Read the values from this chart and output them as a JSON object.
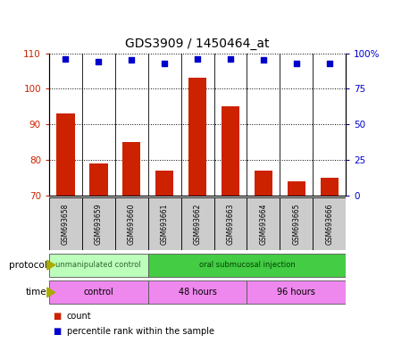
{
  "title": "GDS3909 / 1450464_at",
  "samples": [
    "GSM693658",
    "GSM693659",
    "GSM693660",
    "GSM693661",
    "GSM693662",
    "GSM693663",
    "GSM693664",
    "GSM693665",
    "GSM693666"
  ],
  "count_values": [
    93,
    79,
    85,
    77,
    103,
    95,
    77,
    74,
    75
  ],
  "percentile_values": [
    96,
    94,
    95,
    93,
    96,
    96,
    95,
    93,
    93
  ],
  "ylim_left": [
    70,
    110
  ],
  "ylim_right": [
    0,
    100
  ],
  "yticks_left": [
    70,
    80,
    90,
    100,
    110
  ],
  "yticks_right": [
    0,
    25,
    50,
    75,
    100
  ],
  "ytick_labels_right": [
    "0",
    "25",
    "50",
    "75",
    "100%"
  ],
  "bar_color": "#cc2200",
  "dot_color": "#0000cc",
  "left_tick_color": "#cc2200",
  "right_tick_color": "#0000cc",
  "protocol_label1": "unmanipulated control",
  "protocol_label2": "oral submucosal injection",
  "protocol_color1": "#bbffbb",
  "protocol_color2": "#44cc44",
  "time_label1": "control",
  "time_label2": "48 hours",
  "time_label3": "96 hours",
  "time_color": "#ee88ee",
  "legend_count_label": "count",
  "legend_percentile_label": "percentile rank within the sample",
  "bg_color": "#ffffff",
  "sample_box_color": "#cccccc",
  "arrow_color": "#aaaa00"
}
